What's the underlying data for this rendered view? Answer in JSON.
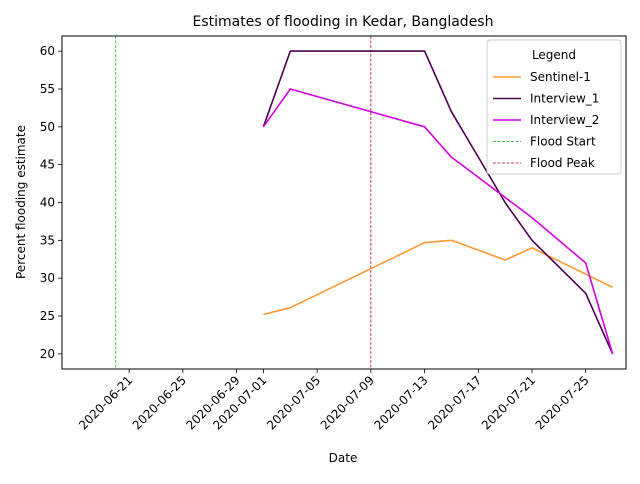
{
  "chart_data": {
    "type": "line",
    "title": "Estimates of flooding in Kedar, Bangladesh",
    "xlabel": "Date",
    "ylabel": "Percent flooding estimate",
    "xlim": [
      "2020-06-16",
      "2020-07-28"
    ],
    "ylim": [
      18,
      62
    ],
    "x_ticks": [
      "2020-06-21",
      "2020-06-25",
      "2020-06-29",
      "2020-07-01",
      "2020-07-05",
      "2020-07-09",
      "2020-07-13",
      "2020-07-17",
      "2020-07-21",
      "2020-07-25"
    ],
    "y_ticks": [
      20,
      25,
      30,
      35,
      40,
      45,
      50,
      55,
      60
    ],
    "grid": false,
    "legend": {
      "title": "Legend",
      "placement": "top-right"
    },
    "series": [
      {
        "name": "Sentinel-1",
        "color": "#ff9933",
        "x": [
          "2020-07-01",
          "2020-07-03",
          "2020-07-13",
          "2020-07-15",
          "2020-07-19",
          "2020-07-21",
          "2020-07-27"
        ],
        "values": [
          25.2,
          26.1,
          34.7,
          35.0,
          32.4,
          34.0,
          28.8
        ]
      },
      {
        "name": "Interview_1",
        "color": "#4b0050",
        "x": [
          "2020-07-01",
          "2020-07-03",
          "2020-07-13",
          "2020-07-15",
          "2020-07-17",
          "2020-07-19",
          "2020-07-21",
          "2020-07-25",
          "2020-07-27"
        ],
        "values": [
          50,
          60,
          60,
          52,
          46,
          40,
          35,
          28,
          20
        ]
      },
      {
        "name": "Interview_2",
        "color": "#d400e0",
        "x": [
          "2020-07-01",
          "2020-07-03",
          "2020-07-13",
          "2020-07-15",
          "2020-07-21",
          "2020-07-25",
          "2020-07-27"
        ],
        "values": [
          50,
          55,
          50,
          46,
          38,
          32,
          20
        ]
      }
    ],
    "vlines": [
      {
        "name": "Flood Start",
        "x": "2020-06-20",
        "color": "#22aa22"
      },
      {
        "name": "Flood Peak",
        "x": "2020-07-09",
        "color": "#b00030"
      }
    ]
  }
}
